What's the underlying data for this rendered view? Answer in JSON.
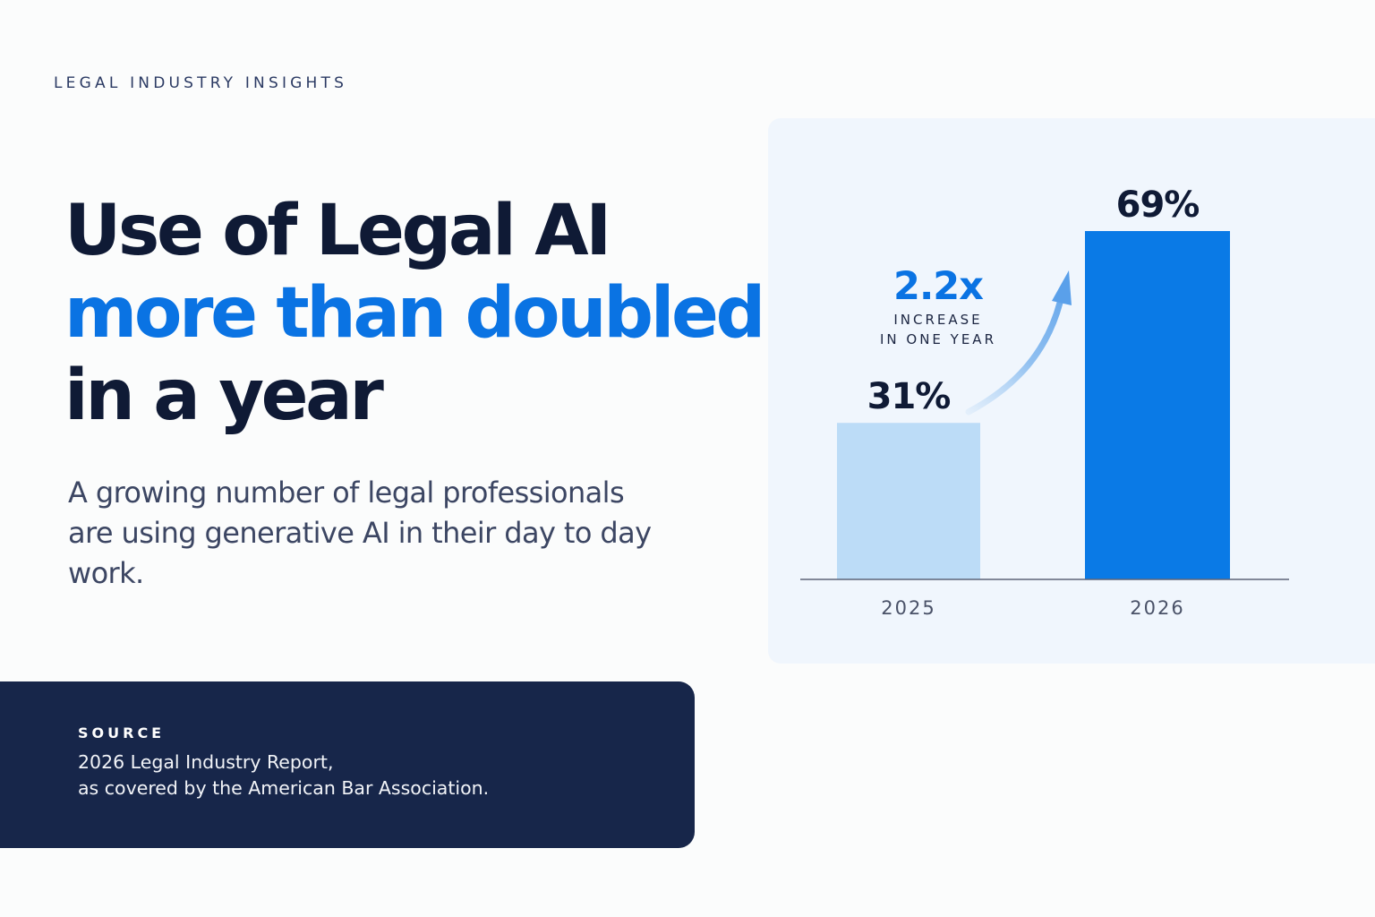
{
  "eyebrow": "LEGAL INDUSTRY INSIGHTS",
  "headline": {
    "line1": "Use of Legal AI",
    "line2": "more than doubled",
    "line3": "in a year"
  },
  "subtitle": "A growing number of legal professionals are using generative AI in their day to day work.",
  "source": {
    "label": "SOURCE",
    "line1": "2026 Legal Industry Report,",
    "line2": "as covered by the American Bar Association."
  },
  "callout": {
    "value": "2.2x",
    "line1": "INCREASE",
    "line2": "IN ONE YEAR"
  },
  "colors": {
    "accent": "#0a73e3",
    "bar_2025": "#bcdcf7",
    "bar_2026": "#0a7ae6",
    "dark": "#17264a"
  },
  "chart_data": {
    "type": "bar",
    "categories": [
      "2025",
      "2026"
    ],
    "values": [
      31,
      69
    ],
    "value_labels": [
      "31%",
      "69%"
    ],
    "unit": "%",
    "ylim": [
      0,
      80
    ],
    "grid": false,
    "annotation": "2.2x INCREASE IN ONE YEAR"
  }
}
